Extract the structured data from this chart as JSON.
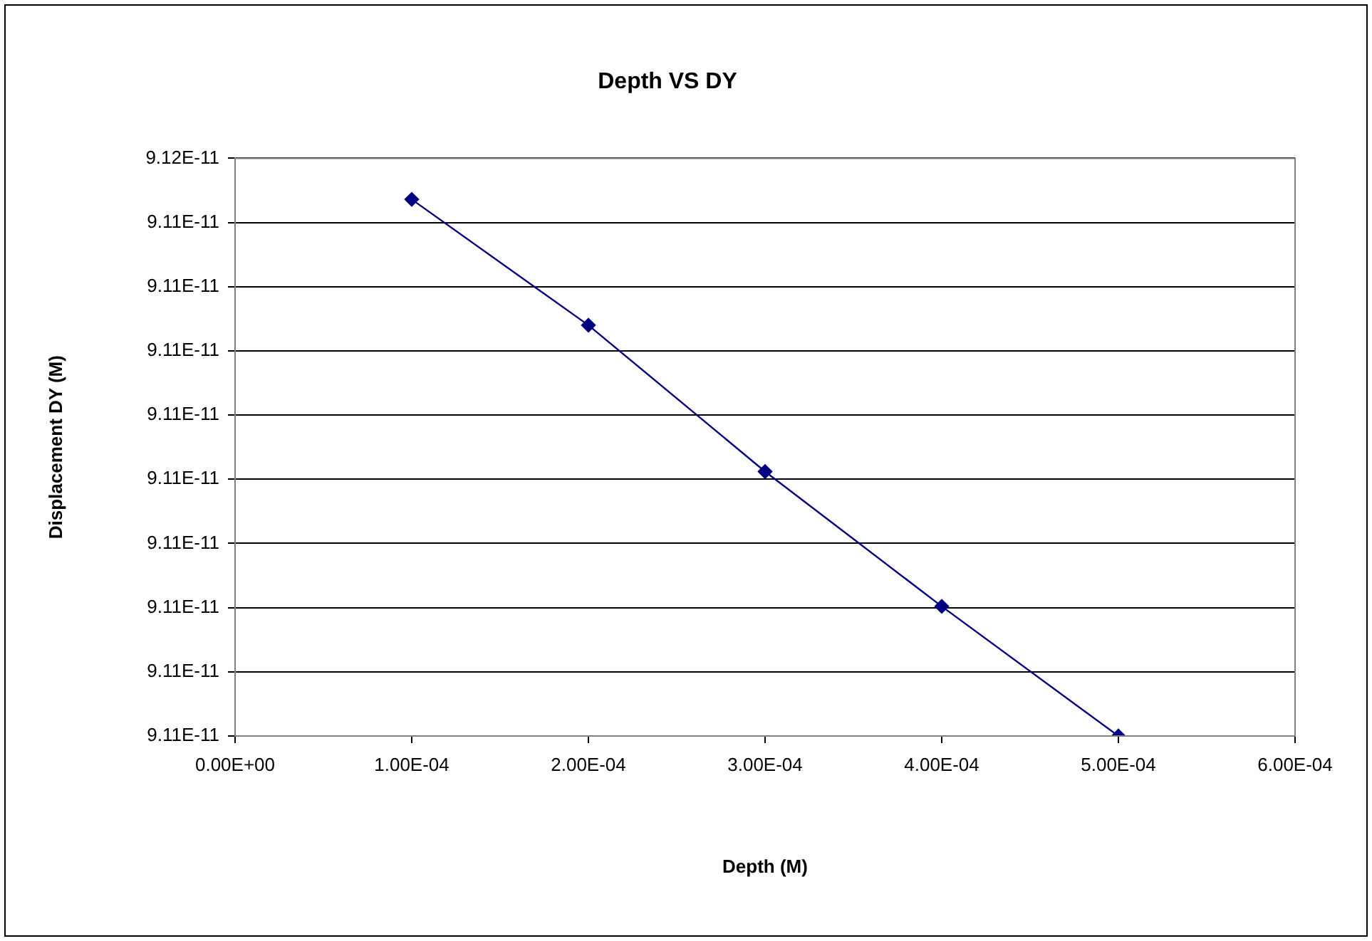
{
  "chart_data": {
    "type": "line",
    "title": "Depth VS DY",
    "xlabel": "Depth (M)",
    "ylabel": "Displacement DY (M)",
    "x": [
      0.0001,
      0.0002,
      0.0003,
      0.0004,
      0.0005
    ],
    "series": [
      {
        "color": "#000080",
        "values": [
          9.11468e-11,
          9.1137e-11,
          9.11256e-11,
          9.11151e-11,
          9.1105e-11
        ]
      }
    ],
    "xlim": [
      0,
      0.0006
    ],
    "xticks": [
      {
        "value": 0,
        "label": "0.00E+00"
      },
      {
        "value": 0.0001,
        "label": "1.00E-04"
      },
      {
        "value": 0.0002,
        "label": "2.00E-04"
      },
      {
        "value": 0.0003,
        "label": "3.00E-04"
      },
      {
        "value": 0.0004,
        "label": "4.00E-04"
      },
      {
        "value": 0.0005,
        "label": "5.00E-04"
      },
      {
        "value": 0.0006,
        "label": "6.00E-04"
      }
    ],
    "ylim": [
      9.1105e-11,
      9.115e-11
    ],
    "yticks": [
      {
        "value": 9.1105e-11,
        "label": "9.11E-11"
      },
      {
        "value": 9.111e-11,
        "label": "9.11E-11"
      },
      {
        "value": 9.1115e-11,
        "label": "9.11E-11"
      },
      {
        "value": 9.112e-11,
        "label": "9.11E-11"
      },
      {
        "value": 9.1125e-11,
        "label": "9.11E-11"
      },
      {
        "value": 9.113e-11,
        "label": "9.11E-11"
      },
      {
        "value": 9.1135e-11,
        "label": "9.11E-11"
      },
      {
        "value": 9.114e-11,
        "label": "9.11E-11"
      },
      {
        "value": 9.1145e-11,
        "label": "9.11E-11"
      },
      {
        "value": 9.115e-11,
        "label": "9.12E-11"
      }
    ],
    "grid": "y",
    "legend": false,
    "marker": "diamond",
    "line_style": "solid"
  }
}
